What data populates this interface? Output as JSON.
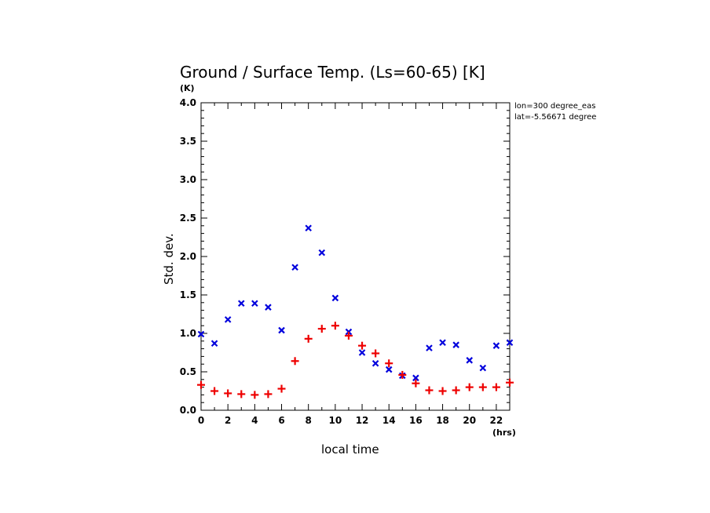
{
  "chart_data": {
    "type": "scatter",
    "title": "Ground / Surface Temp. (Ls=60-65) [K]",
    "xlabel": "local time",
    "ylabel": "Std. dev.",
    "x_unit": "(hrs)",
    "y_unit": "(K)",
    "xlim": [
      0,
      23
    ],
    "ylim": [
      0,
      4.0
    ],
    "x_ticks": [
      "0",
      "2",
      "4",
      "6",
      "8",
      "10",
      "12",
      "14",
      "16",
      "18",
      "20",
      "22"
    ],
    "y_ticks": [
      "0.0",
      "0.5",
      "1.0",
      "1.5",
      "2.0",
      "2.5",
      "3.0",
      "3.5",
      "4.0"
    ],
    "grid": false,
    "annotations": [
      "lon=300 degree_eas",
      "lat=-5.56671 degree"
    ],
    "series": [
      {
        "marker": "x",
        "color": "#0000dd",
        "x": [
          0,
          1,
          2,
          3,
          4,
          5,
          6,
          7,
          8,
          9,
          10,
          11,
          12,
          13,
          14,
          15,
          16,
          17,
          18,
          19,
          20,
          21,
          22,
          23
        ],
        "values": [
          0.99,
          0.87,
          1.18,
          1.39,
          1.39,
          1.34,
          1.04,
          1.86,
          2.37,
          2.05,
          1.46,
          1.02,
          0.75,
          0.61,
          0.53,
          0.45,
          0.42,
          0.81,
          0.88,
          0.85,
          0.65,
          0.55,
          0.84,
          0.88
        ]
      },
      {
        "marker": "+",
        "color": "#ee0000",
        "x": [
          0,
          1,
          2,
          3,
          4,
          5,
          6,
          7,
          8,
          9,
          10,
          11,
          12,
          13,
          14,
          15,
          16,
          17,
          18,
          19,
          20,
          21,
          22,
          23
        ],
        "values": [
          0.33,
          0.25,
          0.22,
          0.21,
          0.2,
          0.21,
          0.28,
          0.64,
          0.93,
          1.06,
          1.1,
          0.97,
          0.84,
          0.74,
          0.61,
          0.46,
          0.35,
          0.26,
          0.25,
          0.26,
          0.3,
          0.3,
          0.3,
          0.36
        ]
      }
    ]
  }
}
